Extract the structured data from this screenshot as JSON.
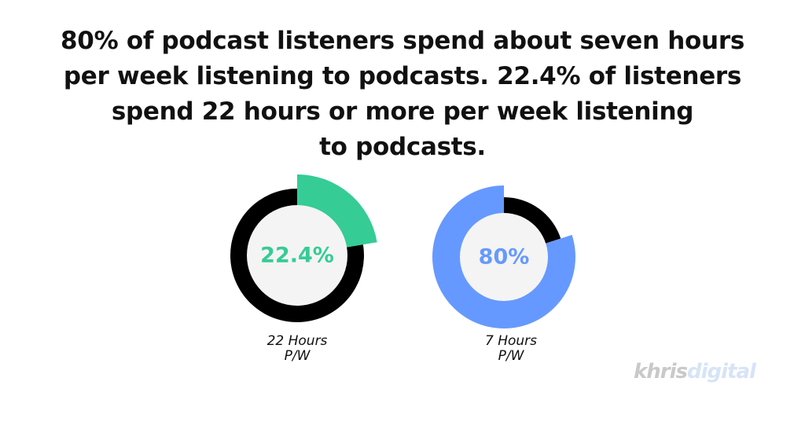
{
  "title_lines": [
    "80% of podcast listeners spend about seven hours",
    "per week listening to podcasts. 22.4% of listeners",
    "spend 22 hours or more per week listening",
    "to podcasts."
  ],
  "chart_data": [
    {
      "type": "pie",
      "value": 22.4,
      "value_label": "22.4%",
      "caption_lines": [
        "22 Hours",
        "P/W"
      ],
      "colors": {
        "segment": "#35cc95",
        "remainder": "#000000",
        "center": "#f4f4f4",
        "label": "#35cc95"
      }
    },
    {
      "type": "pie",
      "value": 80,
      "value_label": "80%",
      "caption_lines": [
        "7 Hours",
        "P/W"
      ],
      "colors": {
        "segment": "#6699ff",
        "remainder": "#000000",
        "center": "#f4f4f4",
        "label": "#6699ff"
      }
    }
  ],
  "logo": {
    "part1": "khris",
    "part2": "digital"
  }
}
